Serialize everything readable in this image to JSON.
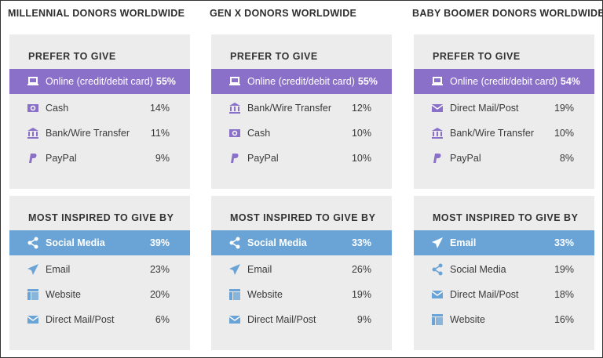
{
  "colors": {
    "prefer_accent": "#8b70c9",
    "inspired_accent": "#6aa3d5",
    "panel_bg": "#ececec"
  },
  "columns": [
    {
      "title": "MILLENNIAL DONORS WORLDWIDE",
      "prefer": {
        "heading": "PREFER TO GIVE",
        "items": [
          {
            "icon": "laptop-icon",
            "label": "Online (credit/debit card)",
            "value": "55%"
          },
          {
            "icon": "cash-icon",
            "label": "Cash",
            "value": "14%"
          },
          {
            "icon": "bank-icon",
            "label": "Bank/Wire Transfer",
            "value": "11%"
          },
          {
            "icon": "paypal-icon",
            "label": "PayPal",
            "value": "9%"
          }
        ]
      },
      "inspired": {
        "heading": "MOST INSPIRED TO GIVE BY",
        "items": [
          {
            "icon": "share-icon",
            "label": "Social Media",
            "value": "39%"
          },
          {
            "icon": "paper-plane-icon",
            "label": "Email",
            "value": "23%"
          },
          {
            "icon": "website-icon",
            "label": "Website",
            "value": "20%"
          },
          {
            "icon": "envelope-icon",
            "label": "Direct Mail/Post",
            "value": "6%"
          }
        ]
      }
    },
    {
      "title": "GEN X DONORS WORLDWIDE",
      "prefer": {
        "heading": "PREFER TO GIVE",
        "items": [
          {
            "icon": "laptop-icon",
            "label": "Online (credit/debit card)",
            "value": "55%"
          },
          {
            "icon": "bank-icon",
            "label": "Bank/Wire Transfer",
            "value": "12%"
          },
          {
            "icon": "cash-icon",
            "label": "Cash",
            "value": "10%"
          },
          {
            "icon": "paypal-icon",
            "label": "PayPal",
            "value": "10%"
          }
        ]
      },
      "inspired": {
        "heading": "MOST INSPIRED TO GIVE BY",
        "items": [
          {
            "icon": "share-icon",
            "label": "Social Media",
            "value": "33%"
          },
          {
            "icon": "paper-plane-icon",
            "label": "Email",
            "value": "26%"
          },
          {
            "icon": "website-icon",
            "label": "Website",
            "value": "19%"
          },
          {
            "icon": "envelope-icon",
            "label": "Direct Mail/Post",
            "value": "9%"
          }
        ]
      }
    },
    {
      "title": "BABY BOOMER DONORS WORLDWIDE",
      "prefer": {
        "heading": "PREFER TO GIVE",
        "items": [
          {
            "icon": "laptop-icon",
            "label": "Online (credit/debit card)",
            "value": "54%"
          },
          {
            "icon": "envelope-icon",
            "label": "Direct Mail/Post",
            "value": "19%"
          },
          {
            "icon": "bank-icon",
            "label": "Bank/Wire Transfer",
            "value": "10%"
          },
          {
            "icon": "paypal-icon",
            "label": "PayPal",
            "value": "8%"
          }
        ]
      },
      "inspired": {
        "heading": "MOST INSPIRED TO GIVE BY",
        "items": [
          {
            "icon": "paper-plane-icon",
            "label": "Email",
            "value": "33%"
          },
          {
            "icon": "share-icon",
            "label": "Social Media",
            "value": "19%"
          },
          {
            "icon": "envelope-icon",
            "label": "Direct Mail/Post",
            "value": "18%"
          },
          {
            "icon": "website-icon",
            "label": "Website",
            "value": "16%"
          }
        ]
      }
    }
  ]
}
